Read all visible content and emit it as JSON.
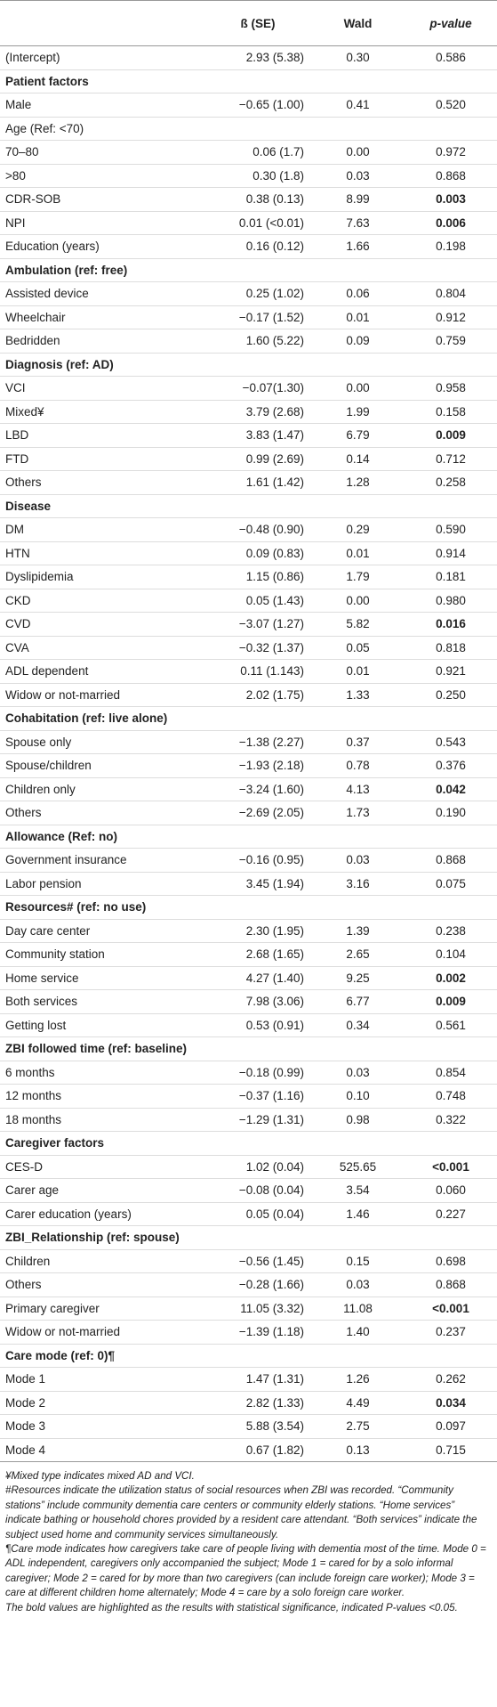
{
  "table": {
    "header": [
      "ß (SE)",
      "Wald",
      "p-value"
    ],
    "rows": [
      {
        "label": "(Intercept)",
        "beta": "2.93 (5.38)",
        "wald": "0.30",
        "p": "0.586"
      },
      {
        "heading": "Patient factors"
      },
      {
        "label": "Male",
        "beta": "−0.65 (1.00)",
        "wald": "0.41",
        "p": "0.520"
      },
      {
        "label": "Age (Ref: <70)"
      },
      {
        "label": "70–80",
        "beta": "0.06 (1.7)",
        "wald": "0.00",
        "p": "0.972"
      },
      {
        "label": ">80",
        "beta": "0.30 (1.8)",
        "wald": "0.03",
        "p": "0.868"
      },
      {
        "label": "CDR-SOB",
        "beta": "0.38 (0.13)",
        "wald": "8.99",
        "p": "0.003",
        "bold": true
      },
      {
        "label": "NPI",
        "beta": "0.01 (<0.01)",
        "wald": "7.63",
        "p": "0.006",
        "bold": true
      },
      {
        "label": "Education (years)",
        "beta": "0.16 (0.12)",
        "wald": "1.66",
        "p": "0.198"
      },
      {
        "heading": "Ambulation (ref: free)"
      },
      {
        "label": "Assisted device",
        "beta": "0.25 (1.02)",
        "wald": "0.06",
        "p": "0.804"
      },
      {
        "label": "Wheelchair",
        "beta": "−0.17 (1.52)",
        "wald": "0.01",
        "p": "0.912"
      },
      {
        "label": "Bedridden",
        "beta": "1.60 (5.22)",
        "wald": "0.09",
        "p": "0.759"
      },
      {
        "heading": "Diagnosis (ref: AD)"
      },
      {
        "label": "VCI",
        "beta": "−0.07(1.30)",
        "wald": "0.00",
        "p": "0.958"
      },
      {
        "label": "Mixed¥",
        "beta": "3.79 (2.68)",
        "wald": "1.99",
        "p": "0.158"
      },
      {
        "label": "LBD",
        "beta": "3.83 (1.47)",
        "wald": "6.79",
        "p": "0.009",
        "bold": true
      },
      {
        "label": "FTD",
        "beta": "0.99 (2.69)",
        "wald": "0.14",
        "p": "0.712"
      },
      {
        "label": "Others",
        "beta": "1.61 (1.42)",
        "wald": "1.28",
        "p": "0.258"
      },
      {
        "heading": "Disease"
      },
      {
        "label": "DM",
        "beta": "−0.48 (0.90)",
        "wald": "0.29",
        "p": "0.590"
      },
      {
        "label": "HTN",
        "beta": "0.09 (0.83)",
        "wald": "0.01",
        "p": "0.914"
      },
      {
        "label": "Dyslipidemia",
        "beta": "1.15 (0.86)",
        "wald": "1.79",
        "p": "0.181"
      },
      {
        "label": "CKD",
        "beta": "0.05 (1.43)",
        "wald": "0.00",
        "p": "0.980"
      },
      {
        "label": "CVD",
        "beta": "−3.07 (1.27)",
        "wald": "5.82",
        "p": "0.016",
        "bold": true
      },
      {
        "label": "CVA",
        "beta": "−0.32 (1.37)",
        "wald": "0.05",
        "p": "0.818"
      },
      {
        "label": "ADL dependent",
        "beta": "0.11 (1.143)",
        "wald": "0.01",
        "p": "0.921"
      },
      {
        "label": "Widow or not-married",
        "beta": "2.02 (1.75)",
        "wald": "1.33",
        "p": "0.250"
      },
      {
        "heading": "Cohabitation (ref: live alone)"
      },
      {
        "label": "Spouse only",
        "beta": "−1.38 (2.27)",
        "wald": "0.37",
        "p": "0.543"
      },
      {
        "label": "Spouse/children",
        "beta": "−1.93 (2.18)",
        "wald": "0.78",
        "p": "0.376"
      },
      {
        "label": "Children only",
        "beta": "−3.24 (1.60)",
        "wald": "4.13",
        "p": "0.042",
        "bold": true
      },
      {
        "label": "Others",
        "beta": "−2.69 (2.05)",
        "wald": "1.73",
        "p": "0.190"
      },
      {
        "heading": "Allowance (Ref: no)"
      },
      {
        "label": "Government insurance",
        "beta": "−0.16 (0.95)",
        "wald": "0.03",
        "p": "0.868"
      },
      {
        "label": "Labor pension",
        "beta": "3.45 (1.94)",
        "wald": "3.16",
        "p": "0.075"
      },
      {
        "heading": "Resources# (ref: no use)"
      },
      {
        "label": "Day care center",
        "beta": "2.30 (1.95)",
        "wald": "1.39",
        "p": "0.238"
      },
      {
        "label": "Community station",
        "beta": "2.68 (1.65)",
        "wald": "2.65",
        "p": "0.104"
      },
      {
        "label": "Home service",
        "beta": "4.27 (1.40)",
        "wald": "9.25",
        "p": "0.002",
        "bold": true
      },
      {
        "label": "Both services",
        "beta": "7.98 (3.06)",
        "wald": "6.77",
        "p": "0.009",
        "bold": true
      },
      {
        "label": "Getting lost",
        "beta": "0.53 (0.91)",
        "wald": "0.34",
        "p": "0.561"
      },
      {
        "heading": "ZBI followed time (ref: baseline)"
      },
      {
        "label": "6 months",
        "beta": "−0.18 (0.99)",
        "wald": "0.03",
        "p": "0.854"
      },
      {
        "label": "12 months",
        "beta": "−0.37 (1.16)",
        "wald": "0.10",
        "p": "0.748"
      },
      {
        "label": "18 months",
        "beta": "−1.29 (1.31)",
        "wald": "0.98",
        "p": "0.322"
      },
      {
        "heading": "Caregiver factors"
      },
      {
        "label": "CES-D",
        "beta": "1.02 (0.04)",
        "wald": "525.65",
        "p": "<0.001",
        "bold": true
      },
      {
        "label": "Carer age",
        "beta": "−0.08 (0.04)",
        "wald": "3.54",
        "p": "0.060"
      },
      {
        "label": "Carer education (years)",
        "beta": "0.05 (0.04)",
        "wald": "1.46",
        "p": "0.227"
      },
      {
        "heading": "ZBI_Relationship (ref: spouse)"
      },
      {
        "label": "Children",
        "beta": "−0.56 (1.45)",
        "wald": "0.15",
        "p": "0.698"
      },
      {
        "label": "Others",
        "beta": "−0.28 (1.66)",
        "wald": "0.03",
        "p": "0.868"
      },
      {
        "label": "Primary caregiver",
        "beta": "11.05 (3.32)",
        "wald": "11.08",
        "p": "<0.001",
        "bold": true
      },
      {
        "label": "Widow or not-married",
        "beta": "−1.39 (1.18)",
        "wald": "1.40",
        "p": "0.237"
      },
      {
        "heading": "Care mode (ref: 0)¶"
      },
      {
        "label": "Mode 1",
        "beta": "1.47 (1.31)",
        "wald": "1.26",
        "p": "0.262"
      },
      {
        "label": "Mode 2",
        "beta": "2.82 (1.33)",
        "wald": "4.49",
        "p": "0.034",
        "bold": true
      },
      {
        "label": "Mode 3",
        "beta": "5.88 (3.54)",
        "wald": "2.75",
        "p": "0.097"
      },
      {
        "label": "Mode 4",
        "beta": "0.67 (1.82)",
        "wald": "0.13",
        "p": "0.715"
      }
    ]
  },
  "footnotes": [
    "¥Mixed type indicates mixed AD and VCI.",
    "#Resources indicate the utilization status of social resources when ZBI was recorded. “Community stations” include community dementia care centers or community elderly stations. “Home services” indicate bathing or household chores provided by a resident care attendant. “Both services” indicate the subject used home and community services simultaneously.",
    "¶Care mode indicates how caregivers take care of people living with dementia most of the time. Mode 0 = ADL independent, caregivers only accompanied the subject; Mode 1 = cared for by a solo informal caregiver; Mode 2 = cared for by more than two caregivers (can include foreign care worker); Mode 3 = care at different children home alternately; Mode 4 = care by a solo foreign care worker.",
    "The bold values are highlighted as the results with statistical significance, indicated P-values <0.05."
  ]
}
